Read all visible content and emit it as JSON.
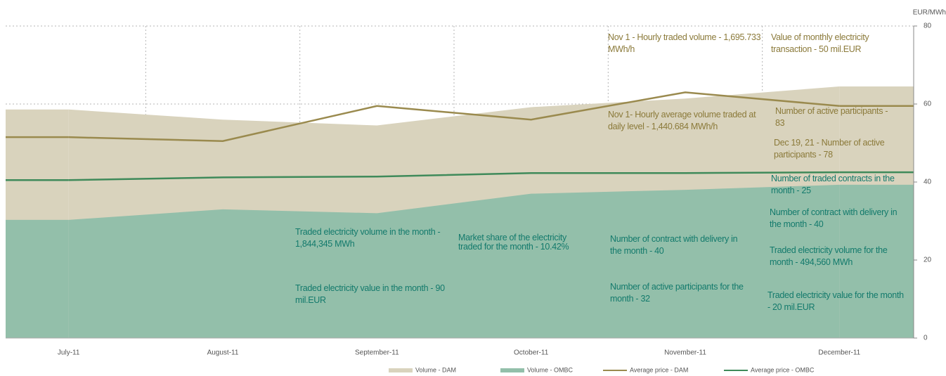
{
  "chart_data": {
    "type": "area_line",
    "y_axis_label": "EUR/MWh",
    "categories": [
      "July-11",
      "August-11",
      "September-11",
      "October-11",
      "November-11",
      "December-11"
    ],
    "ylim": [
      0,
      80
    ],
    "yticks": [
      0,
      20,
      40,
      60,
      80
    ],
    "grid": true,
    "series": [
      {
        "name": "Volume - DAM",
        "kind": "area",
        "color": "#d9d3bd",
        "values": [
          58.6,
          56,
          54.5,
          59.2,
          61.4,
          64.5
        ]
      },
      {
        "name": "Volume - OMBC",
        "kind": "area",
        "color": "#93bfaa",
        "values": [
          30.3,
          33,
          32,
          37,
          38,
          39.3
        ]
      },
      {
        "name": "Average price - DAM",
        "kind": "line",
        "color": "#9a8a4e",
        "values": [
          51.5,
          50.5,
          59.5,
          56,
          63,
          59.5
        ]
      },
      {
        "name": "Average price - OMBC",
        "kind": "line",
        "color": "#3f8a5a",
        "values": [
          40.5,
          41.2,
          41.4,
          42.3,
          42.3,
          42.5
        ]
      }
    ],
    "annotations": [
      {
        "text": "Nov 1 - Hourly traded volume - 1,695.733 MWh/h",
        "color": "#8b7a3a"
      },
      {
        "text": "Value of monthly electricity transaction - 50 mil.EUR",
        "color": "#8b7a3a"
      },
      {
        "text": "Nov 1- Hourly average volume traded at daily level - 1,440.684 MWh/h",
        "color": "#8b7a3a"
      },
      {
        "text": "Number of active participants - 83",
        "color": "#8b7a3a"
      },
      {
        "text": "Dec 19, 21 - Number of active participants - 78",
        "color": "#8b7a3a"
      },
      {
        "text": "Number of traded contracts in the month - 25",
        "color": "#137a6c"
      },
      {
        "text": "Number of contract with delivery in the month - 40",
        "color": "#137a6c"
      },
      {
        "text": "Traded electricity volume in the month - 1,844,345 MWh",
        "color": "#137a6c"
      },
      {
        "text": "Market share of the electricity traded for the month - 10.42%",
        "color": "#137a6c"
      },
      {
        "text": "Number of contract with delivery in the month - 40",
        "color": "#137a6c"
      },
      {
        "text": "Traded electricity volume for the month - 494,560 MWh",
        "color": "#137a6c"
      },
      {
        "text": "Traded electricity value in the month - 90 mil.EUR",
        "color": "#137a6c"
      },
      {
        "text": "Number of active participants for the month - 32",
        "color": "#137a6c"
      },
      {
        "text": "Traded electricity value for the month - 20 mil.EUR",
        "color": "#137a6c"
      }
    ]
  }
}
